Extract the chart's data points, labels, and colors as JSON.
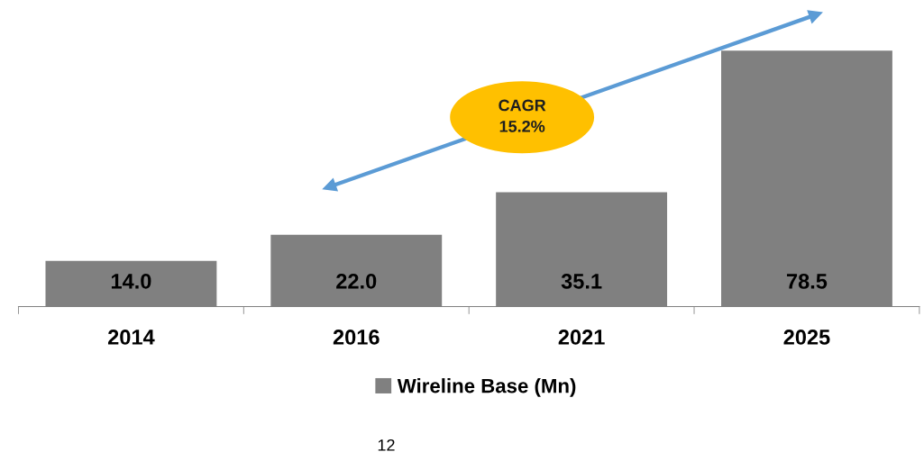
{
  "chart_data": {
    "type": "bar",
    "categories": [
      "2014",
      "2016",
      "2021",
      "2025"
    ],
    "series": [
      {
        "name": "Wireline Base (Mn)",
        "color": "#808080",
        "values": [
          14.0,
          22.0,
          35.1,
          78.5
        ],
        "value_labels": [
          "14.0",
          "22.0",
          "35.1",
          "78.5"
        ]
      }
    ],
    "legend": "bottom",
    "grid": false,
    "annotations": [
      "CAGR\n15.2%",
      "12"
    ]
  }
}
